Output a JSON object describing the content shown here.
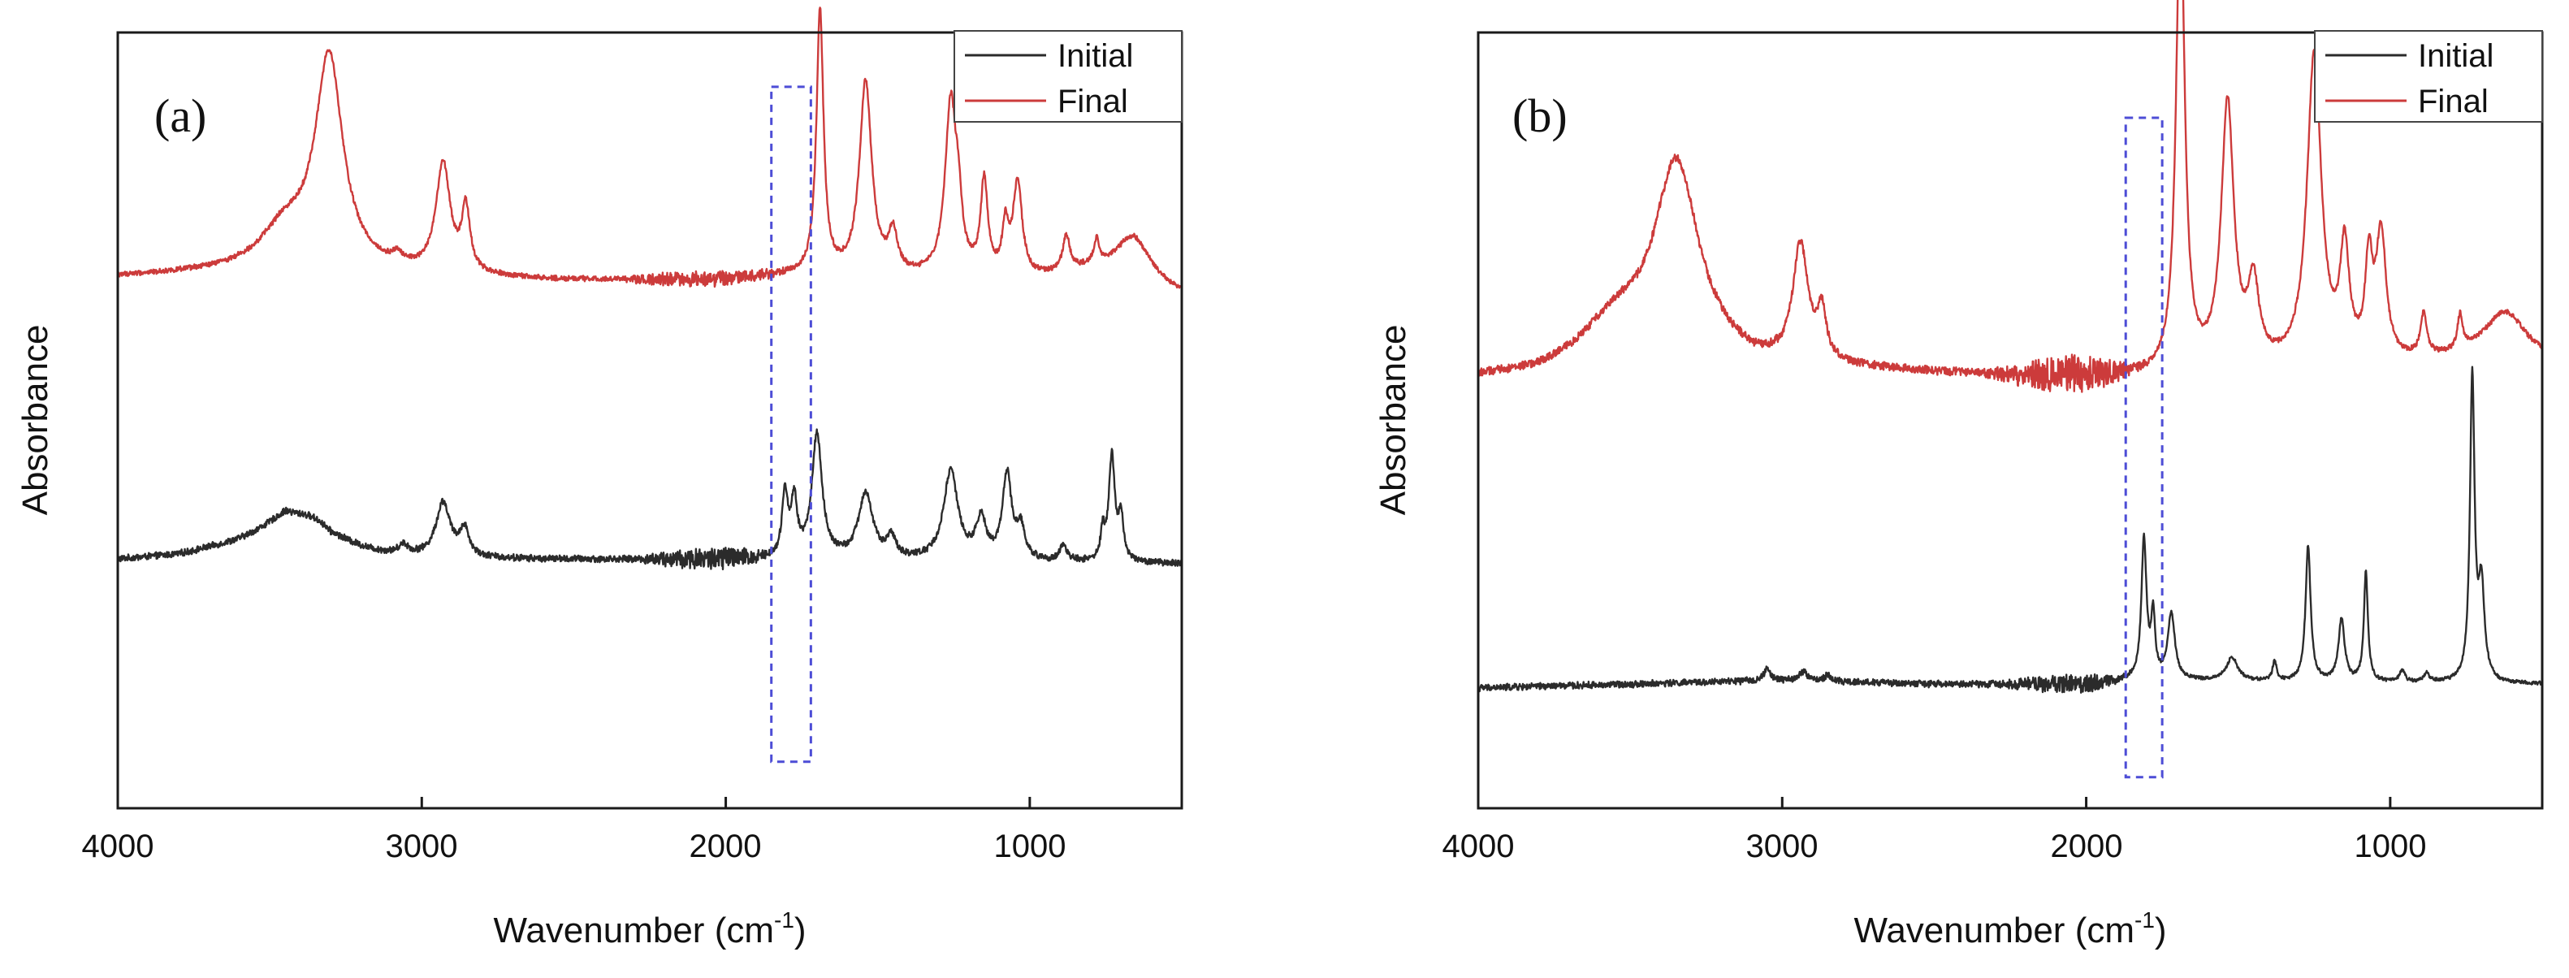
{
  "colors": {
    "initial": "#2b2b2b",
    "final": "#cc3b3b",
    "highlight": "#4d4dd6"
  },
  "chart_data": [
    {
      "type": "line",
      "panel_label": "(a)",
      "xlabel": "Wavenumber (cm",
      "xlabel_superscript": "-1",
      "xlabel_close": ")",
      "ylabel": "Absorbance",
      "xlim": [
        4000,
        500
      ],
      "ylim": [
        0,
        1
      ],
      "x_ticks": [
        4000,
        3000,
        2000,
        1000
      ],
      "x_tick_labels": [
        "4000",
        "3000",
        "2000",
        "1000"
      ],
      "legend": {
        "position": "top-right",
        "entries": [
          "Initial",
          "Final"
        ]
      },
      "highlight_region": {
        "x": [
          1850,
          1720
        ],
        "y": [
          0.06,
          0.93
        ]
      },
      "series": [
        {
          "name": "Initial",
          "baseline": [
            [
              4000,
              0.32
            ],
            [
              3800,
              0.325
            ],
            [
              3600,
              0.34
            ],
            [
              3450,
              0.36
            ],
            [
              3300,
              0.32
            ],
            [
              3100,
              0.32
            ],
            [
              2600,
              0.32
            ],
            [
              2200,
              0.32
            ],
            [
              1900,
              0.32
            ],
            [
              500,
              0.315
            ]
          ],
          "peaks": [
            {
              "center": 3340,
              "height": 0.04,
              "width": 130
            },
            {
              "center": 3060,
              "height": 0.012,
              "width": 18
            },
            {
              "center": 2930,
              "height": 0.07,
              "width": 28
            },
            {
              "center": 2860,
              "height": 0.035,
              "width": 18
            },
            {
              "center": 1805,
              "height": 0.08,
              "width": 12
            },
            {
              "center": 1775,
              "height": 0.07,
              "width": 12
            },
            {
              "center": 1700,
              "height": 0.16,
              "width": 20
            },
            {
              "center": 1540,
              "height": 0.085,
              "width": 28
            },
            {
              "center": 1455,
              "height": 0.025,
              "width": 18
            },
            {
              "center": 1260,
              "height": 0.115,
              "width": 28
            },
            {
              "center": 1160,
              "height": 0.05,
              "width": 20
            },
            {
              "center": 1075,
              "height": 0.11,
              "width": 18
            },
            {
              "center": 1030,
              "height": 0.04,
              "width": 16
            },
            {
              "center": 890,
              "height": 0.02,
              "width": 14
            },
            {
              "center": 760,
              "height": 0.035,
              "width": 8
            },
            {
              "center": 730,
              "height": 0.135,
              "width": 12
            },
            {
              "center": 700,
              "height": 0.055,
              "width": 10
            }
          ],
          "noise": [
            [
              2300,
              0.004
            ],
            [
              2150,
              0.012
            ],
            [
              2000,
              0.015
            ],
            [
              1900,
              0.01
            ],
            [
              1850,
              0.004
            ]
          ]
        },
        {
          "name": "Final",
          "baseline": [
            [
              4000,
              0.685
            ],
            [
              3600,
              0.69
            ],
            [
              3300,
              0.69
            ],
            [
              3000,
              0.685
            ],
            [
              2600,
              0.68
            ],
            [
              2300,
              0.68
            ],
            [
              2000,
              0.68
            ],
            [
              1800,
              0.685
            ],
            [
              1000,
              0.68
            ],
            [
              800,
              0.69
            ],
            [
              500,
              0.66
            ]
          ],
          "peaks": [
            {
              "center": 3305,
              "height": 0.27,
              "width": 55
            },
            {
              "center": 3450,
              "height": 0.05,
              "width": 100
            },
            {
              "center": 2930,
              "height": 0.14,
              "width": 28
            },
            {
              "center": 2855,
              "height": 0.08,
              "width": 16
            },
            {
              "center": 3080,
              "height": 0.012,
              "width": 20
            },
            {
              "center": 1690,
              "height": 0.34,
              "width": 14
            },
            {
              "center": 1540,
              "height": 0.25,
              "width": 24
            },
            {
              "center": 1450,
              "height": 0.05,
              "width": 18
            },
            {
              "center": 1260,
              "height": 0.22,
              "width": 22
            },
            {
              "center": 1235,
              "height": 0.06,
              "width": 14
            },
            {
              "center": 1150,
              "height": 0.12,
              "width": 14
            },
            {
              "center": 1080,
              "height": 0.06,
              "width": 12
            },
            {
              "center": 1040,
              "height": 0.12,
              "width": 18
            },
            {
              "center": 880,
              "height": 0.045,
              "width": 14
            },
            {
              "center": 780,
              "height": 0.03,
              "width": 10
            },
            {
              "center": 660,
              "height": 0.06,
              "width": 70
            }
          ],
          "noise": [
            [
              2350,
              0.003
            ],
            [
              2200,
              0.009
            ],
            [
              2050,
              0.01
            ],
            [
              1900,
              0.008
            ],
            [
              1780,
              0.003
            ]
          ]
        }
      ]
    },
    {
      "type": "line",
      "panel_label": "(b)",
      "xlabel": "Wavenumber (cm",
      "xlabel_superscript": "-1",
      "xlabel_close": ")",
      "ylabel": "Absorbance",
      "xlim": [
        4000,
        500
      ],
      "ylim": [
        0,
        1
      ],
      "x_ticks": [
        4000,
        3000,
        2000,
        1000
      ],
      "x_tick_labels": [
        "4000",
        "3000",
        "2000",
        "1000"
      ],
      "legend": {
        "position": "top-right",
        "entries": [
          "Initial",
          "Final"
        ]
      },
      "highlight_region": {
        "x": [
          1870,
          1750
        ],
        "y": [
          0.04,
          0.89
        ]
      },
      "series": [
        {
          "name": "Initial",
          "baseline": [
            [
              4000,
              0.155
            ],
            [
              3500,
              0.16
            ],
            [
              3000,
              0.165
            ],
            [
              2500,
              0.16
            ],
            [
              2000,
              0.16
            ],
            [
              1850,
              0.165
            ],
            [
              500,
              0.16
            ]
          ],
          "peaks": [
            {
              "center": 3050,
              "height": 0.015,
              "width": 12
            },
            {
              "center": 2930,
              "height": 0.012,
              "width": 15
            },
            {
              "center": 2850,
              "height": 0.008,
              "width": 12
            },
            {
              "center": 1810,
              "height": 0.18,
              "width": 10
            },
            {
              "center": 1780,
              "height": 0.08,
              "width": 8
            },
            {
              "center": 1720,
              "height": 0.085,
              "width": 14
            },
            {
              "center": 1520,
              "height": 0.03,
              "width": 22
            },
            {
              "center": 1380,
              "height": 0.025,
              "width": 8
            },
            {
              "center": 1270,
              "height": 0.175,
              "width": 10
            },
            {
              "center": 1160,
              "height": 0.08,
              "width": 12
            },
            {
              "center": 1080,
              "height": 0.14,
              "width": 8
            },
            {
              "center": 960,
              "height": 0.015,
              "width": 10
            },
            {
              "center": 880,
              "height": 0.012,
              "width": 10
            },
            {
              "center": 730,
              "height": 0.39,
              "width": 9
            },
            {
              "center": 700,
              "height": 0.12,
              "width": 12
            }
          ],
          "noise": [
            [
              2300,
              0.004
            ],
            [
              2150,
              0.01
            ],
            [
              2000,
              0.012
            ],
            [
              1900,
              0.006
            ],
            [
              1850,
              0.002
            ]
          ]
        },
        {
          "name": "Final",
          "baseline": [
            [
              4000,
              0.555
            ],
            [
              3800,
              0.56
            ],
            [
              3600,
              0.58
            ],
            [
              3300,
              0.6
            ],
            [
              3100,
              0.57
            ],
            [
              2800,
              0.565
            ],
            [
              2500,
              0.56
            ],
            [
              2200,
              0.555
            ],
            [
              1800,
              0.555
            ],
            [
              1000,
              0.57
            ],
            [
              700,
              0.58
            ],
            [
              500,
              0.575
            ]
          ],
          "peaks": [
            {
              "center": 3350,
              "height": 0.23,
              "width": 85
            },
            {
              "center": 3550,
              "height": 0.04,
              "width": 120
            },
            {
              "center": 2940,
              "height": 0.15,
              "width": 30
            },
            {
              "center": 2870,
              "height": 0.06,
              "width": 18
            },
            {
              "center": 1690,
              "height": 0.61,
              "width": 17
            },
            {
              "center": 1535,
              "height": 0.34,
              "width": 25
            },
            {
              "center": 1450,
              "height": 0.1,
              "width": 22
            },
            {
              "center": 1250,
              "height": 0.4,
              "width": 28
            },
            {
              "center": 1150,
              "height": 0.14,
              "width": 18
            },
            {
              "center": 1070,
              "height": 0.12,
              "width": 14
            },
            {
              "center": 1030,
              "height": 0.16,
              "width": 20
            },
            {
              "center": 890,
              "height": 0.055,
              "width": 12
            },
            {
              "center": 770,
              "height": 0.045,
              "width": 10
            },
            {
              "center": 620,
              "height": 0.06,
              "width": 80
            }
          ],
          "noise": [
            [
              2350,
              0.005
            ],
            [
              2200,
              0.017
            ],
            [
              2050,
              0.026
            ],
            [
              1950,
              0.02
            ],
            [
              1850,
              0.008
            ],
            [
              1780,
              0.003
            ]
          ]
        }
      ]
    }
  ]
}
